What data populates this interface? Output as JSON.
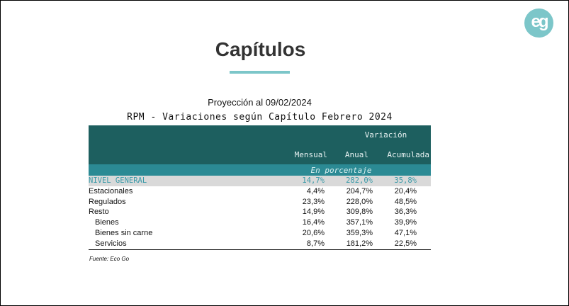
{
  "logo": "eg",
  "title": "Capítulos",
  "projection": "Proyección al 09/02/2024",
  "table_title": "RPM - Variaciones según Capítulo Febrero 2024",
  "header": {
    "group": "Variación",
    "columns": [
      "Mensual",
      "Anual",
      "Acumulada"
    ],
    "unit": "En porcentaje"
  },
  "rows": [
    {
      "label": "NIVEL GENERAL",
      "values": [
        "14,7%",
        "282,0%",
        "35,8%"
      ]
    },
    {
      "label": "Estacionales",
      "values": [
        "4,4%",
        "204,7%",
        "20,4%"
      ]
    },
    {
      "label": "Regulados",
      "values": [
        "23,3%",
        "228,0%",
        "48,5%"
      ]
    },
    {
      "label": "Resto",
      "values": [
        "14,9%",
        "309,8%",
        "36,3%"
      ]
    },
    {
      "label": "Bienes",
      "values": [
        "16,4%",
        "357,1%",
        "39,9%"
      ]
    },
    {
      "label": "Bienes sin carne",
      "values": [
        "20,6%",
        "359,3%",
        "47,1%"
      ]
    },
    {
      "label": "Servicios",
      "values": [
        "8,7%",
        "181,2%",
        "22,5%"
      ]
    }
  ],
  "source": "Fuente: Eco Go"
}
